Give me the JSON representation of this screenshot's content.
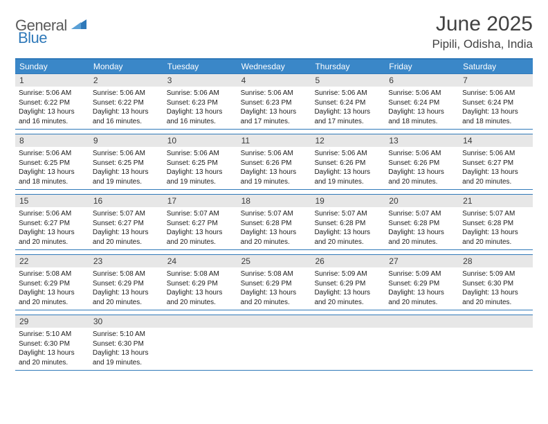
{
  "brand": {
    "part1": "General",
    "part2": "Blue"
  },
  "title": "June 2025",
  "location": "Pipili, Odisha, India",
  "colors": {
    "accent": "#3a87c8",
    "accent_dark": "#2f79b9",
    "header_gray": "#e7e7e7",
    "text_dark": "#414141",
    "body_text": "#1a1a1a",
    "logo_gray": "#5a5a5a"
  },
  "dow": [
    "Sunday",
    "Monday",
    "Tuesday",
    "Wednesday",
    "Thursday",
    "Friday",
    "Saturday"
  ],
  "weeks": [
    [
      {
        "n": "1",
        "sunrise": "5:06 AM",
        "sunset": "6:22 PM",
        "dl": "13 hours and 16 minutes."
      },
      {
        "n": "2",
        "sunrise": "5:06 AM",
        "sunset": "6:22 PM",
        "dl": "13 hours and 16 minutes."
      },
      {
        "n": "3",
        "sunrise": "5:06 AM",
        "sunset": "6:23 PM",
        "dl": "13 hours and 16 minutes."
      },
      {
        "n": "4",
        "sunrise": "5:06 AM",
        "sunset": "6:23 PM",
        "dl": "13 hours and 17 minutes."
      },
      {
        "n": "5",
        "sunrise": "5:06 AM",
        "sunset": "6:24 PM",
        "dl": "13 hours and 17 minutes."
      },
      {
        "n": "6",
        "sunrise": "5:06 AM",
        "sunset": "6:24 PM",
        "dl": "13 hours and 18 minutes."
      },
      {
        "n": "7",
        "sunrise": "5:06 AM",
        "sunset": "6:24 PM",
        "dl": "13 hours and 18 minutes."
      }
    ],
    [
      {
        "n": "8",
        "sunrise": "5:06 AM",
        "sunset": "6:25 PM",
        "dl": "13 hours and 18 minutes."
      },
      {
        "n": "9",
        "sunrise": "5:06 AM",
        "sunset": "6:25 PM",
        "dl": "13 hours and 19 minutes."
      },
      {
        "n": "10",
        "sunrise": "5:06 AM",
        "sunset": "6:25 PM",
        "dl": "13 hours and 19 minutes."
      },
      {
        "n": "11",
        "sunrise": "5:06 AM",
        "sunset": "6:26 PM",
        "dl": "13 hours and 19 minutes."
      },
      {
        "n": "12",
        "sunrise": "5:06 AM",
        "sunset": "6:26 PM",
        "dl": "13 hours and 19 minutes."
      },
      {
        "n": "13",
        "sunrise": "5:06 AM",
        "sunset": "6:26 PM",
        "dl": "13 hours and 20 minutes."
      },
      {
        "n": "14",
        "sunrise": "5:06 AM",
        "sunset": "6:27 PM",
        "dl": "13 hours and 20 minutes."
      }
    ],
    [
      {
        "n": "15",
        "sunrise": "5:06 AM",
        "sunset": "6:27 PM",
        "dl": "13 hours and 20 minutes."
      },
      {
        "n": "16",
        "sunrise": "5:07 AM",
        "sunset": "6:27 PM",
        "dl": "13 hours and 20 minutes."
      },
      {
        "n": "17",
        "sunrise": "5:07 AM",
        "sunset": "6:27 PM",
        "dl": "13 hours and 20 minutes."
      },
      {
        "n": "18",
        "sunrise": "5:07 AM",
        "sunset": "6:28 PM",
        "dl": "13 hours and 20 minutes."
      },
      {
        "n": "19",
        "sunrise": "5:07 AM",
        "sunset": "6:28 PM",
        "dl": "13 hours and 20 minutes."
      },
      {
        "n": "20",
        "sunrise": "5:07 AM",
        "sunset": "6:28 PM",
        "dl": "13 hours and 20 minutes."
      },
      {
        "n": "21",
        "sunrise": "5:07 AM",
        "sunset": "6:28 PM",
        "dl": "13 hours and 20 minutes."
      }
    ],
    [
      {
        "n": "22",
        "sunrise": "5:08 AM",
        "sunset": "6:29 PM",
        "dl": "13 hours and 20 minutes."
      },
      {
        "n": "23",
        "sunrise": "5:08 AM",
        "sunset": "6:29 PM",
        "dl": "13 hours and 20 minutes."
      },
      {
        "n": "24",
        "sunrise": "5:08 AM",
        "sunset": "6:29 PM",
        "dl": "13 hours and 20 minutes."
      },
      {
        "n": "25",
        "sunrise": "5:08 AM",
        "sunset": "6:29 PM",
        "dl": "13 hours and 20 minutes."
      },
      {
        "n": "26",
        "sunrise": "5:09 AM",
        "sunset": "6:29 PM",
        "dl": "13 hours and 20 minutes."
      },
      {
        "n": "27",
        "sunrise": "5:09 AM",
        "sunset": "6:29 PM",
        "dl": "13 hours and 20 minutes."
      },
      {
        "n": "28",
        "sunrise": "5:09 AM",
        "sunset": "6:30 PM",
        "dl": "13 hours and 20 minutes."
      }
    ],
    [
      {
        "n": "29",
        "sunrise": "5:10 AM",
        "sunset": "6:30 PM",
        "dl": "13 hours and 20 minutes."
      },
      {
        "n": "30",
        "sunrise": "5:10 AM",
        "sunset": "6:30 PM",
        "dl": "13 hours and 19 minutes."
      },
      {
        "n": "",
        "empty": true
      },
      {
        "n": "",
        "empty": true
      },
      {
        "n": "",
        "empty": true
      },
      {
        "n": "",
        "empty": true
      },
      {
        "n": "",
        "empty": true
      }
    ]
  ],
  "labels": {
    "sunrise": "Sunrise: ",
    "sunset": "Sunset: ",
    "daylight": "Daylight: "
  }
}
